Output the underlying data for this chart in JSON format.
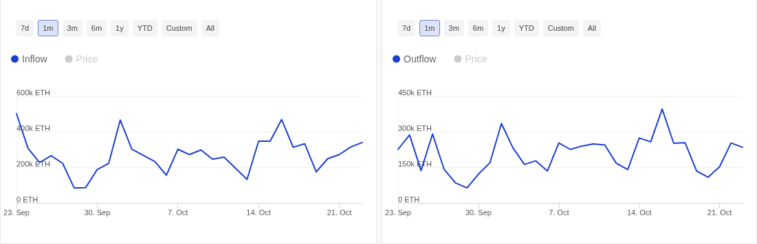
{
  "chart_data": [
    {
      "type": "line",
      "annotations": [
        "7d",
        "1m",
        "3m",
        "6m",
        "1y",
        "YTD",
        "Custom",
        "All"
      ],
      "legend": "top left",
      "grid": "y",
      "marker": "none",
      "line_style": "solid",
      "x": [
        "--09-23",
        "--09-24",
        "--09-25",
        "--09-26",
        "--09-27",
        "--09-28",
        "--09-29",
        "--09-30",
        "--10-01",
        "--10-02",
        "--10-03",
        "--10-04",
        "--10-05",
        "--10-06",
        "--10-07",
        "--10-08",
        "--10-09",
        "--10-10",
        "--10-11",
        "--10-12",
        "--10-13",
        "--10-14",
        "--10-15",
        "--10-16",
        "--10-17",
        "--10-18",
        "--10-19",
        "--10-20",
        "--10-21",
        "--10-22",
        "--10-23"
      ],
      "xlim": [
        "--09-23",
        "--10-23"
      ],
      "xticks": [
        {
          "value": "--09-23",
          "label": "23. Sep"
        },
        {
          "value": "--09-30",
          "label": "30. Sep"
        },
        {
          "value": "--10-07",
          "label": "7. Oct"
        },
        {
          "value": "--10-14",
          "label": "14. Oct"
        },
        {
          "value": "--10-21",
          "label": "21. Oct"
        }
      ],
      "ylim": [
        0,
        600000
      ],
      "yticks": [
        {
          "value": 0,
          "label": "0 ETH"
        },
        {
          "value": 200000,
          "label": "200k ETH"
        },
        {
          "value": 400000,
          "label": "400k ETH"
        },
        {
          "value": 600000,
          "label": "600k ETH"
        }
      ],
      "series": [
        {
          "name": "Inflow",
          "color": "#1a3fd1",
          "values": [
            500000,
            306000,
            226000,
            265000,
            222000,
            84000,
            86000,
            187000,
            222000,
            465000,
            301000,
            267000,
            232000,
            155000,
            301000,
            271000,
            297000,
            245000,
            257000,
            194000,
            132000,
            346000,
            346000,
            468000,
            312000,
            332000,
            174000,
            248000,
            271000,
            314000,
            339000
          ]
        },
        {
          "name": "Price",
          "color": "#cccccc",
          "values": [
            null,
            null,
            null,
            null,
            null,
            null,
            null,
            null,
            null,
            null,
            null,
            null,
            null,
            null,
            null,
            null,
            null,
            null,
            null,
            null,
            null,
            null,
            null,
            null,
            null,
            null,
            null,
            null,
            null,
            null,
            null
          ]
        }
      ]
    },
    {
      "type": "line",
      "annotations": [
        "7d",
        "1m",
        "3m",
        "6m",
        "1y",
        "YTD",
        "Custom",
        "All"
      ],
      "legend": "top left",
      "grid": "y",
      "marker": "none",
      "line_style": "solid",
      "x": [
        "--09-23",
        "--09-24",
        "--09-25",
        "--09-26",
        "--09-27",
        "--09-28",
        "--09-29",
        "--09-30",
        "--10-01",
        "--10-02",
        "--10-03",
        "--10-04",
        "--10-05",
        "--10-06",
        "--10-07",
        "--10-08",
        "--10-09",
        "--10-10",
        "--10-11",
        "--10-12",
        "--10-13",
        "--10-14",
        "--10-15",
        "--10-16",
        "--10-17",
        "--10-18",
        "--10-19",
        "--10-20",
        "--10-21",
        "--10-22",
        "--10-23"
      ],
      "xlim": [
        "--09-23",
        "--10-23"
      ],
      "xticks": [
        {
          "value": "--09-23",
          "label": "23. Sep"
        },
        {
          "value": "--09-30",
          "label": "30. Sep"
        },
        {
          "value": "--10-07",
          "label": "7. Oct"
        },
        {
          "value": "--10-14",
          "label": "14. Oct"
        },
        {
          "value": "--10-21",
          "label": "21. Oct"
        }
      ],
      "ylim": [
        0,
        450000
      ],
      "yticks": [
        {
          "value": 0,
          "label": "0 ETH"
        },
        {
          "value": 150000,
          "label": "150k ETH"
        },
        {
          "value": 300000,
          "label": "300k ETH"
        },
        {
          "value": 450000,
          "label": "450k ETH"
        }
      ],
      "series": [
        {
          "name": "Outflow",
          "color": "#1a3fd1",
          "values": [
            225000,
            286000,
            136000,
            290000,
            142000,
            84000,
            63000,
            121000,
            169000,
            334000,
            232000,
            162000,
            177000,
            134000,
            252000,
            225000,
            239000,
            248000,
            244000,
            167000,
            140000,
            273000,
            257000,
            395000,
            251000,
            253000,
            134000,
            108000,
            152000,
            252000,
            234000
          ]
        },
        {
          "name": "Price",
          "color": "#cccccc",
          "values": [
            null,
            null,
            null,
            null,
            null,
            null,
            null,
            null,
            null,
            null,
            null,
            null,
            null,
            null,
            null,
            null,
            null,
            null,
            null,
            null,
            null,
            null,
            null,
            null,
            null,
            null,
            null,
            null,
            null,
            null,
            null
          ]
        }
      ]
    }
  ]
}
